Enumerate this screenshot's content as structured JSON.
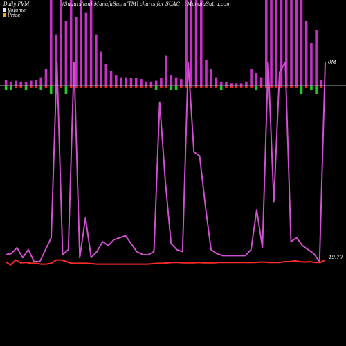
{
  "header": {
    "left": "Daily PVM",
    "center": "(Sudarshan) MunafaSutra(TM) charts for SUAC",
    "right": "MunafaSutra.com"
  },
  "legend": [
    {
      "label": "Volume",
      "color": "#e8e8e8"
    },
    {
      "label": "Price",
      "color": "#f5a623"
    }
  ],
  "colors": {
    "volume_bar": "#c530c5",
    "up_bar": "#22cc22",
    "down_bar": "#ee2222",
    "volume_line": "#d050d0",
    "price_line": "#ff2a2a",
    "baseline": "#aaaaaa"
  },
  "chart_data": {
    "type": "bar",
    "volume_axis_label": "0M",
    "price_axis_label": "19.70",
    "bar_heights": [
      0.07,
      0.05,
      0.06,
      0.05,
      0.04,
      0.06,
      0.07,
      0.1,
      0.2,
      1.0,
      0.6,
      1.0,
      0.75,
      1.0,
      0.8,
      1.0,
      0.85,
      1.0,
      0.6,
      0.4,
      0.25,
      0.17,
      0.12,
      0.1,
      0.1,
      0.09,
      0.09,
      0.08,
      0.05,
      0.05,
      0.06,
      0.09,
      0.35,
      0.12,
      0.1,
      0.08,
      1.0,
      1.0,
      1.0,
      1.0,
      0.3,
      0.2,
      0.1,
      0.05,
      0.04,
      0.03,
      0.03,
      0.03,
      0.05,
      0.2,
      0.15,
      0.1,
      1.0,
      1.0,
      1.0,
      1.0,
      1.0,
      1.0,
      1.0,
      1.0,
      0.75,
      0.5,
      0.65,
      0.07
    ],
    "bar_direction": [
      -1,
      -1,
      1,
      1,
      -1,
      1,
      1,
      -1,
      1,
      -1,
      -1,
      1,
      -1,
      1,
      1,
      1,
      1,
      1,
      1,
      1,
      1,
      1,
      1,
      1,
      1,
      1,
      1,
      1,
      1,
      1,
      -1,
      1,
      1,
      -1,
      -1,
      1,
      1,
      1,
      1,
      1,
      1,
      1,
      1,
      -1,
      1,
      1,
      1,
      1,
      1,
      1,
      -1,
      1,
      1,
      1,
      1,
      1,
      1,
      1,
      1,
      -1,
      1,
      -1,
      -1,
      1
    ],
    "volume_line": [
      0.035,
      0.04,
      0.07,
      0.02,
      0.06,
      0.0,
      0.0,
      0.06,
      0.12,
      1.0,
      0.035,
      0.06,
      1.0,
      0.02,
      0.22,
      0.02,
      0.05,
      0.1,
      0.08,
      0.11,
      0.12,
      0.13,
      0.09,
      0.05,
      0.035,
      0.035,
      0.05,
      0.8,
      0.4,
      0.09,
      0.06,
      0.05,
      1.0,
      0.55,
      0.53,
      0.28,
      0.06,
      0.04,
      0.03,
      0.03,
      0.03,
      0.03,
      0.03,
      0.06,
      0.26,
      0.07,
      1.0,
      0.3,
      0.95,
      1.0,
      0.1,
      0.12,
      0.08,
      0.06,
      0.04,
      0.0,
      1.0
    ],
    "price_line": [
      0.5,
      0.1,
      0.7,
      0.35,
      0.4,
      0.3,
      0.3,
      0.2,
      0.2,
      0.3,
      0.7,
      0.7,
      0.5,
      0.3,
      0.3,
      0.3,
      0.3,
      0.25,
      0.2,
      0.2,
      0.2,
      0.2,
      0.2,
      0.2,
      0.2,
      0.2,
      0.2,
      0.2,
      0.2,
      0.25,
      0.3,
      0.3,
      0.35,
      0.4,
      0.4,
      0.35,
      0.35,
      0.35,
      0.4,
      0.35,
      0.35,
      0.35,
      0.4,
      0.4,
      0.4,
      0.4,
      0.4,
      0.4,
      0.4,
      0.4,
      0.45,
      0.45,
      0.4,
      0.4,
      0.4,
      0.5,
      0.5,
      0.6,
      0.5,
      0.45,
      0.5,
      0.4,
      0.4,
      0.7
    ]
  }
}
